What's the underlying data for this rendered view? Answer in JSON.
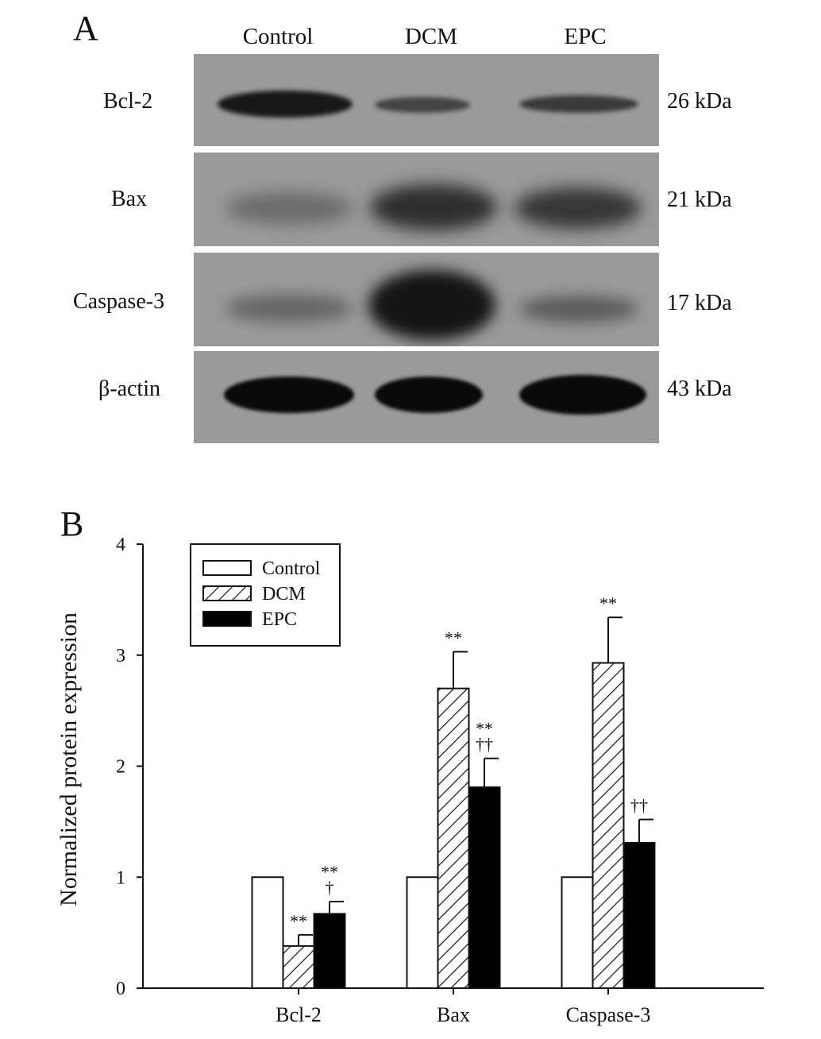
{
  "panel_a": {
    "letter": "A",
    "lanes": [
      "Control",
      "DCM",
      "EPC"
    ],
    "rows": [
      {
        "protein": "Bcl-2",
        "kda": "26 kDa"
      },
      {
        "protein": "Bax",
        "kda": "21 kDa"
      },
      {
        "protein": "Caspase-3",
        "kda": "17 kDa"
      },
      {
        "protein": "β-actin",
        "kda": "43 kDa"
      }
    ]
  },
  "panel_b": {
    "letter": "B"
  },
  "chart_data": {
    "type": "bar",
    "title": "",
    "xlabel": "",
    "ylabel": "Normalized protein expression",
    "ylim": [
      0,
      4
    ],
    "yticks": [
      "0",
      "1",
      "2",
      "3",
      "4"
    ],
    "categories": [
      "Bcl-2",
      "Bax",
      "Caspase-3"
    ],
    "legend_position": "top-left",
    "series": [
      {
        "name": "Control",
        "fill": "white",
        "values": [
          1.0,
          1.0,
          1.0
        ],
        "errors": [
          0,
          0,
          0
        ],
        "annotations": [
          "",
          "",
          ""
        ]
      },
      {
        "name": "DCM",
        "fill": "hatched",
        "values": [
          0.38,
          2.7,
          2.93
        ],
        "errors": [
          0.1,
          0.33,
          0.41
        ],
        "annotations": [
          "**",
          "**",
          "**"
        ]
      },
      {
        "name": "EPC",
        "fill": "black",
        "values": [
          0.67,
          1.81,
          1.31
        ],
        "errors": [
          0.11,
          0.26,
          0.21
        ],
        "annotations": [
          "**\n†",
          "**\n††",
          "††"
        ]
      }
    ]
  }
}
